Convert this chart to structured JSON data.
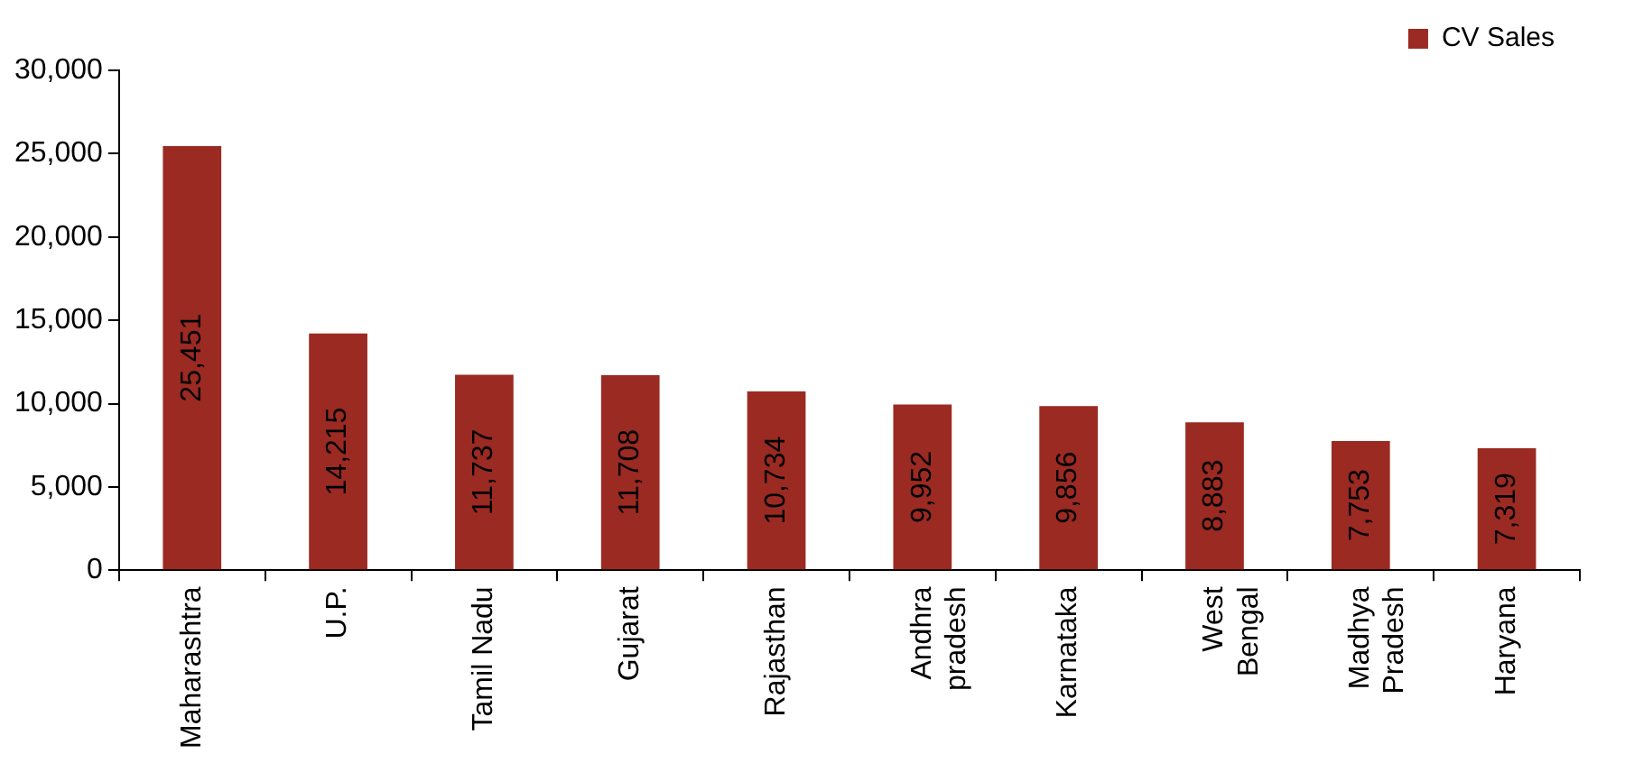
{
  "chart_data": {
    "type": "bar",
    "categories": [
      "Maharashtra",
      "U.P.",
      "Tamil Nadu",
      "Gujarat",
      "Rajasthan",
      "Andhra pradesh",
      "Karnataka",
      "West Bengal",
      "Madhya Pradesh",
      "Haryana"
    ],
    "series": [
      {
        "name": "CV Sales",
        "color": "#9b2a22",
        "values": [
          25451,
          14215,
          11737,
          11708,
          10734,
          9952,
          9856,
          8883,
          7753,
          7319
        ],
        "value_labels": [
          "25,451",
          "14,215",
          "11,737",
          "11,708",
          "10,734",
          "9,952",
          "9,856",
          "8,883",
          "7,753",
          "7,319"
        ]
      }
    ],
    "ylim": [
      0,
      30000
    ],
    "yticks": [
      {
        "value": 0,
        "label": "0"
      },
      {
        "value": 5000,
        "label": "5,000"
      },
      {
        "value": 10000,
        "label": "10,000"
      },
      {
        "value": 15000,
        "label": "15,000"
      },
      {
        "value": 20000,
        "label": "20,000"
      },
      {
        "value": 25000,
        "label": "25,000"
      },
      {
        "value": 30000,
        "label": "30,000"
      }
    ],
    "grid": false,
    "legend": "top right"
  }
}
